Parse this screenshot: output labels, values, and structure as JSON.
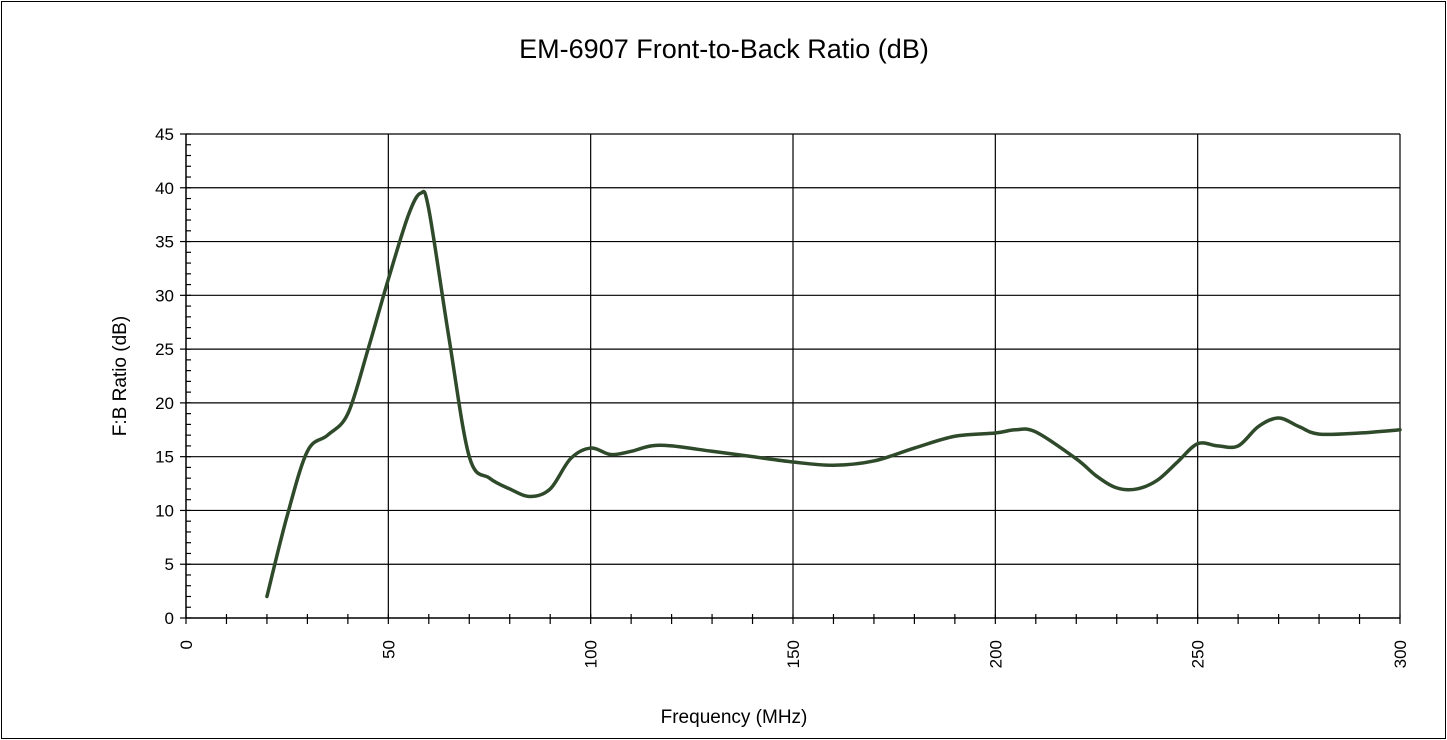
{
  "chart_data": {
    "type": "line",
    "title": "EM-6907 Front-to-Back Ratio (dB)",
    "xlabel": "Frequency (MHz)",
    "ylabel": "F:B Ratio (dB)",
    "xlim": [
      0,
      300
    ],
    "ylim": [
      0,
      45
    ],
    "x_ticks": [
      0,
      50,
      100,
      150,
      200,
      250,
      300
    ],
    "y_ticks": [
      0,
      5,
      10,
      15,
      20,
      25,
      30,
      35,
      40,
      45
    ],
    "grid": true,
    "legend": "none",
    "series": [
      {
        "color": "#2f4a2a",
        "x": [
          20,
          25,
          30,
          35,
          40,
          45,
          50,
          55,
          58,
          60,
          65,
          70,
          75,
          80,
          85,
          90,
          95,
          100,
          105,
          110,
          115,
          120,
          130,
          140,
          150,
          160,
          170,
          180,
          190,
          200,
          205,
          210,
          220,
          225,
          230,
          235,
          240,
          245,
          250,
          255,
          260,
          265,
          270,
          275,
          280,
          290,
          300
        ],
        "y": [
          2,
          9.5,
          15.5,
          17,
          19,
          25,
          31.5,
          37.5,
          39.5,
          38,
          26,
          15,
          13,
          12,
          11.3,
          12,
          14.8,
          15.8,
          15.2,
          15.5,
          16,
          16,
          15.5,
          15,
          14.5,
          14.2,
          14.6,
          15.8,
          16.9,
          17.2,
          17.5,
          17.3,
          14.8,
          13.2,
          12.1,
          12,
          12.8,
          14.5,
          16.2,
          16,
          16,
          17.8,
          18.6,
          17.8,
          17.1,
          17.2,
          17.5
        ]
      }
    ]
  }
}
